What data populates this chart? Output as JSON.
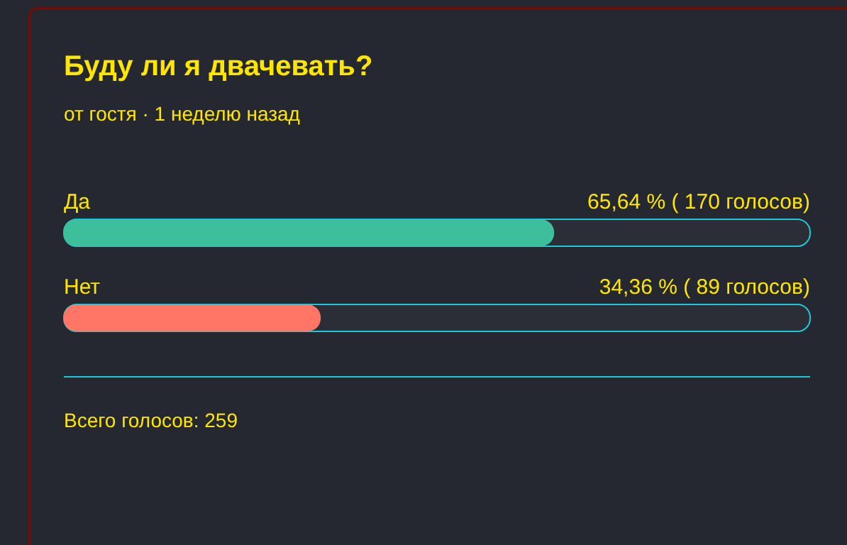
{
  "chart_data": {
    "type": "bar",
    "orientation": "horizontal",
    "title": "Буду ли я двачевать?",
    "subtitle": "от гостя · 1 неделю назад",
    "categories": [
      "Да",
      "Нет"
    ],
    "values": [
      65.64,
      34.36
    ],
    "colors": [
      "#3cbf9a",
      "#ff7566"
    ],
    "value_labels": [
      "65,64 % ( 170 голосов)",
      "34,36 % ( 89 голосов)"
    ],
    "xlim": [
      0,
      100
    ],
    "tick_labels": false,
    "annotations": [
      "Всего голосов: 259"
    ]
  }
}
